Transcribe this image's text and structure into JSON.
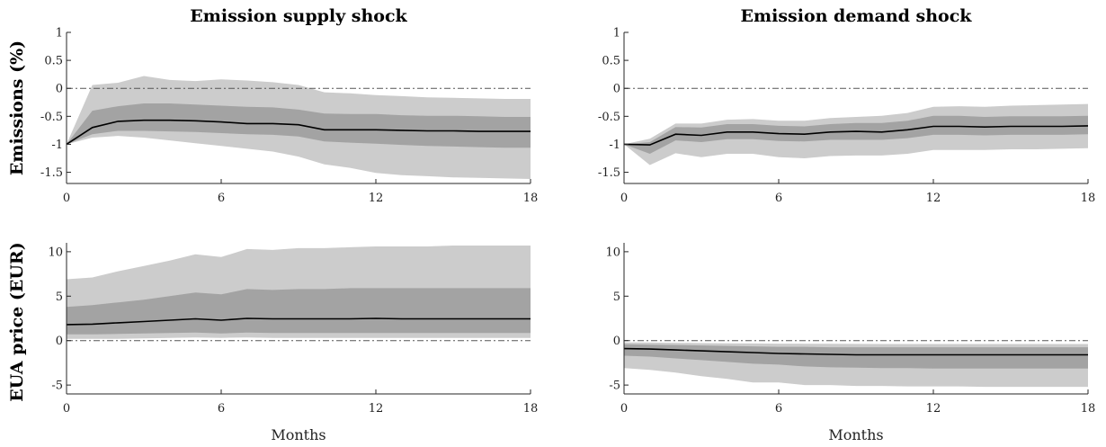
{
  "figure": {
    "col_titles": [
      "Emission supply shock",
      "Emission demand shock"
    ],
    "row_labels": [
      "Emissions (%)",
      "EUA price (EUR)"
    ],
    "xlabel": "Months"
  },
  "colors": {
    "band90": "#cccccc",
    "band68": "#a3a3a3",
    "median": "#000000",
    "zero_line": "#555555"
  },
  "chart_data": [
    {
      "type": "area",
      "panel": "Emission supply shock / Emissions (%)",
      "title": "Emission supply shock",
      "ylabel": "Emissions (%)",
      "xlabel": "",
      "xlim": [
        0,
        18
      ],
      "ylim": [
        -1.7,
        1
      ],
      "xticks": [
        0,
        6,
        12,
        18
      ],
      "yticks": [
        -1.5,
        -1,
        -0.5,
        0,
        0.5,
        1
      ],
      "ytick_labels": [
        "-1.5",
        "-1",
        "-0.5",
        "0",
        "0.5",
        "1"
      ],
      "zero_line": true,
      "x": [
        0,
        1,
        2,
        3,
        4,
        5,
        6,
        7,
        8,
        9,
        10,
        11,
        12,
        13,
        14,
        15,
        16,
        17,
        18
      ],
      "series": [
        {
          "name": "median",
          "values": [
            -1.0,
            -0.7,
            -0.59,
            -0.57,
            -0.57,
            -0.58,
            -0.6,
            -0.63,
            -0.63,
            -0.65,
            -0.74,
            -0.74,
            -0.74,
            -0.75,
            -0.76,
            -0.76,
            -0.77,
            -0.77,
            -0.77
          ]
        },
        {
          "name": "band68_lower",
          "values": [
            -1.0,
            -0.82,
            -0.76,
            -0.76,
            -0.77,
            -0.78,
            -0.8,
            -0.82,
            -0.83,
            -0.86,
            -0.95,
            -0.97,
            -0.99,
            -1.01,
            -1.03,
            -1.04,
            -1.05,
            -1.06,
            -1.06
          ]
        },
        {
          "name": "band68_upper",
          "values": [
            -1.0,
            -0.4,
            -0.32,
            -0.27,
            -0.27,
            -0.29,
            -0.31,
            -0.33,
            -0.34,
            -0.38,
            -0.45,
            -0.46,
            -0.46,
            -0.48,
            -0.49,
            -0.49,
            -0.5,
            -0.51,
            -0.51
          ]
        },
        {
          "name": "band90_lower",
          "values": [
            -1.0,
            -0.88,
            -0.85,
            -0.88,
            -0.93,
            -0.98,
            -1.03,
            -1.08,
            -1.13,
            -1.22,
            -1.36,
            -1.42,
            -1.51,
            -1.55,
            -1.57,
            -1.59,
            -1.6,
            -1.61,
            -1.62
          ]
        },
        {
          "name": "band90_upper",
          "values": [
            -1.0,
            0.06,
            0.1,
            0.22,
            0.15,
            0.13,
            0.16,
            0.14,
            0.11,
            0.06,
            -0.07,
            -0.09,
            -0.12,
            -0.14,
            -0.16,
            -0.17,
            -0.18,
            -0.19,
            -0.19
          ]
        }
      ]
    },
    {
      "type": "area",
      "panel": "Emission demand shock / Emissions (%)",
      "title": "Emission demand shock",
      "ylabel": "",
      "xlabel": "",
      "xlim": [
        0,
        18
      ],
      "ylim": [
        -1.7,
        1
      ],
      "xticks": [
        0,
        6,
        12,
        18
      ],
      "yticks": [
        -1.5,
        -1,
        -0.5,
        0,
        0.5,
        1
      ],
      "ytick_labels": [
        "-1.5",
        "-1",
        "-0.5",
        "0",
        "0.5",
        "1"
      ],
      "zero_line": true,
      "x": [
        0,
        1,
        2,
        3,
        4,
        5,
        6,
        7,
        8,
        9,
        10,
        11,
        12,
        13,
        14,
        15,
        16,
        17,
        18
      ],
      "series": [
        {
          "name": "median",
          "values": [
            -1.0,
            -1.01,
            -0.82,
            -0.84,
            -0.78,
            -0.78,
            -0.81,
            -0.82,
            -0.78,
            -0.77,
            -0.78,
            -0.74,
            -0.68,
            -0.68,
            -0.69,
            -0.68,
            -0.68,
            -0.68,
            -0.67
          ]
        },
        {
          "name": "band68_lower",
          "values": [
            -1.0,
            -1.17,
            -0.93,
            -0.96,
            -0.91,
            -0.91,
            -0.94,
            -0.95,
            -0.92,
            -0.92,
            -0.92,
            -0.89,
            -0.83,
            -0.83,
            -0.84,
            -0.83,
            -0.83,
            -0.83,
            -0.82
          ]
        },
        {
          "name": "band68_upper",
          "values": [
            -1.0,
            -0.96,
            -0.69,
            -0.7,
            -0.64,
            -0.64,
            -0.67,
            -0.68,
            -0.64,
            -0.62,
            -0.62,
            -0.58,
            -0.49,
            -0.49,
            -0.51,
            -0.5,
            -0.5,
            -0.5,
            -0.49
          ]
        },
        {
          "name": "band90_lower",
          "values": [
            -1.0,
            -1.37,
            -1.16,
            -1.23,
            -1.17,
            -1.17,
            -1.23,
            -1.25,
            -1.21,
            -1.2,
            -1.2,
            -1.17,
            -1.1,
            -1.1,
            -1.1,
            -1.09,
            -1.09,
            -1.08,
            -1.07
          ]
        },
        {
          "name": "band90_upper",
          "values": [
            -1.0,
            -0.9,
            -0.63,
            -0.63,
            -0.56,
            -0.55,
            -0.58,
            -0.58,
            -0.53,
            -0.51,
            -0.49,
            -0.44,
            -0.33,
            -0.32,
            -0.33,
            -0.31,
            -0.3,
            -0.29,
            -0.28
          ]
        }
      ]
    },
    {
      "type": "area",
      "panel": "Emission supply shock / EUA price (EUR)",
      "title": "",
      "ylabel": "EUA price (EUR)",
      "xlabel": "Months",
      "xlim": [
        0,
        18
      ],
      "ylim": [
        -6,
        11
      ],
      "xticks": [
        0,
        6,
        12,
        18
      ],
      "yticks": [
        -5,
        0,
        5,
        10
      ],
      "ytick_labels": [
        "-5",
        "0",
        "5",
        "10"
      ],
      "zero_line": true,
      "x": [
        0,
        1,
        2,
        3,
        4,
        5,
        6,
        7,
        8,
        9,
        10,
        11,
        12,
        13,
        14,
        15,
        16,
        17,
        18
      ],
      "series": [
        {
          "name": "median",
          "values": [
            1.8,
            1.85,
            2.0,
            2.15,
            2.3,
            2.45,
            2.3,
            2.5,
            2.45,
            2.45,
            2.45,
            2.45,
            2.5,
            2.45,
            2.45,
            2.45,
            2.45,
            2.45,
            2.45
          ]
        },
        {
          "name": "band68_lower",
          "values": [
            0.7,
            0.7,
            0.75,
            0.8,
            0.85,
            0.9,
            0.8,
            0.9,
            0.85,
            0.85,
            0.85,
            0.85,
            0.85,
            0.85,
            0.85,
            0.85,
            0.85,
            0.85,
            0.85
          ]
        },
        {
          "name": "band68_upper",
          "values": [
            3.8,
            4.0,
            4.3,
            4.6,
            5.0,
            5.4,
            5.2,
            5.8,
            5.7,
            5.8,
            5.8,
            5.9,
            5.9,
            5.9,
            5.9,
            5.9,
            5.9,
            5.9,
            5.9
          ]
        },
        {
          "name": "band90_lower",
          "values": [
            0.2,
            0.2,
            0.2,
            0.25,
            0.3,
            0.35,
            0.3,
            0.35,
            0.3,
            0.3,
            0.3,
            0.3,
            0.3,
            0.3,
            0.3,
            0.3,
            0.3,
            0.3,
            0.3
          ]
        },
        {
          "name": "band90_upper",
          "values": [
            6.9,
            7.1,
            7.8,
            8.4,
            9.0,
            9.7,
            9.4,
            10.3,
            10.2,
            10.4,
            10.4,
            10.5,
            10.6,
            10.6,
            10.6,
            10.7,
            10.7,
            10.7,
            10.7
          ]
        }
      ]
    },
    {
      "type": "area",
      "panel": "Emission demand shock / EUA price (EUR)",
      "title": "",
      "ylabel": "",
      "xlabel": "Months",
      "xlim": [
        0,
        18
      ],
      "ylim": [
        -6,
        11
      ],
      "xticks": [
        0,
        6,
        12,
        18
      ],
      "yticks": [
        -5,
        0,
        5,
        10
      ],
      "ytick_labels": [
        "-5",
        "0",
        "5",
        "10"
      ],
      "zero_line": true,
      "x": [
        0,
        1,
        2,
        3,
        4,
        5,
        6,
        7,
        8,
        9,
        10,
        11,
        12,
        13,
        14,
        15,
        16,
        17,
        18
      ],
      "series": [
        {
          "name": "median",
          "values": [
            -0.9,
            -0.95,
            -1.05,
            -1.15,
            -1.25,
            -1.35,
            -1.45,
            -1.5,
            -1.55,
            -1.6,
            -1.6,
            -1.6,
            -1.6,
            -1.6,
            -1.6,
            -1.6,
            -1.6,
            -1.6,
            -1.6
          ]
        },
        {
          "name": "band68_lower",
          "values": [
            -1.7,
            -1.8,
            -2.0,
            -2.2,
            -2.4,
            -2.6,
            -2.7,
            -2.9,
            -3.0,
            -3.05,
            -3.1,
            -3.1,
            -3.15,
            -3.15,
            -3.15,
            -3.15,
            -3.15,
            -3.15,
            -3.15
          ]
        },
        {
          "name": "band68_upper",
          "values": [
            -0.4,
            -0.45,
            -0.5,
            -0.55,
            -0.6,
            -0.65,
            -0.7,
            -0.7,
            -0.75,
            -0.75,
            -0.75,
            -0.75,
            -0.75,
            -0.75,
            -0.75,
            -0.75,
            -0.75,
            -0.75,
            -0.75
          ]
        },
        {
          "name": "band90_lower",
          "values": [
            -3.1,
            -3.3,
            -3.6,
            -4.0,
            -4.3,
            -4.7,
            -4.7,
            -5.0,
            -5.0,
            -5.1,
            -5.1,
            -5.15,
            -5.15,
            -5.15,
            -5.2,
            -5.2,
            -5.2,
            -5.2,
            -5.2
          ]
        },
        {
          "name": "band90_upper",
          "values": [
            -0.2,
            -0.22,
            -0.25,
            -0.28,
            -0.3,
            -0.32,
            -0.34,
            -0.35,
            -0.36,
            -0.37,
            -0.38,
            -0.38,
            -0.38,
            -0.38,
            -0.38,
            -0.38,
            -0.38,
            -0.38,
            -0.38
          ]
        }
      ]
    }
  ]
}
